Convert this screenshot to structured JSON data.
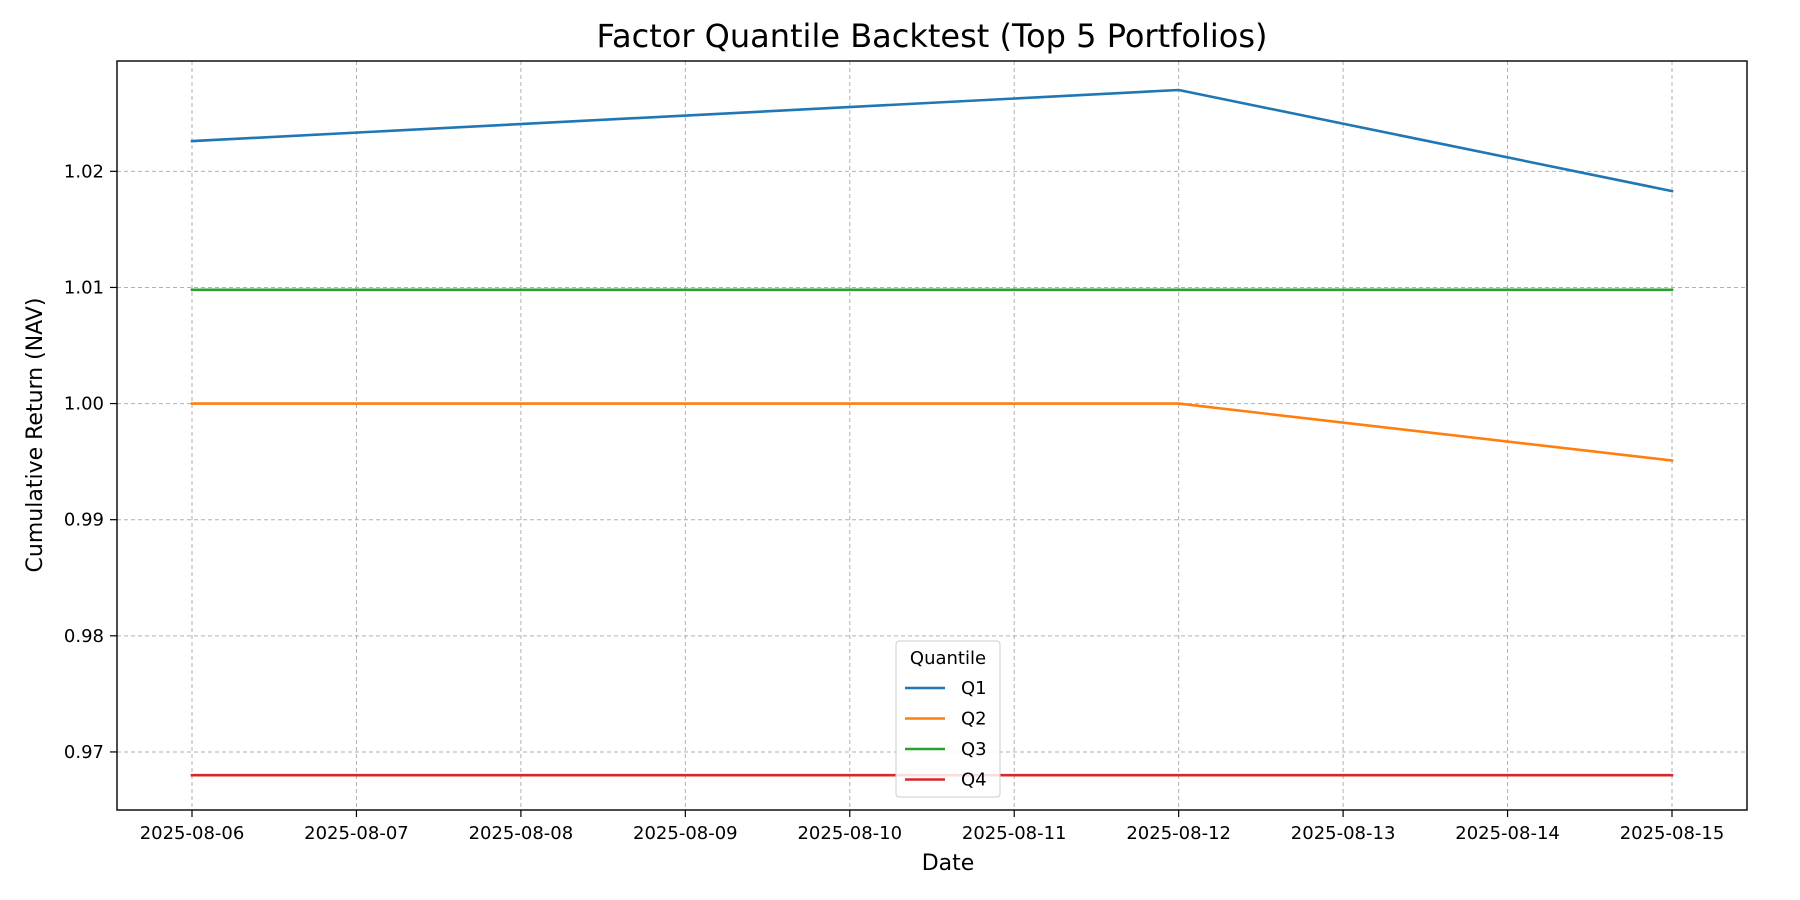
{
  "chart_data": {
    "type": "line",
    "title": "Factor Quantile Backtest (Top 5 Portfolios)",
    "xlabel": "Date",
    "ylabel": "Cumulative Return (NAV)",
    "x": [
      "2025-08-06",
      "2025-08-07",
      "2025-08-08",
      "2025-08-09",
      "2025-08-10",
      "2025-08-11",
      "2025-08-12",
      "2025-08-13",
      "2025-08-14",
      "2025-08-15"
    ],
    "ylim": [
      0.965,
      1.0295
    ],
    "yticks": [
      0.97,
      0.98,
      0.99,
      1.0,
      1.01,
      1.02
    ],
    "ytick_labels": [
      "0.97",
      "0.98",
      "0.99",
      "1.00",
      "1.01",
      "1.02"
    ],
    "grid": true,
    "legend_title": "Quantile",
    "legend_position": "bottom-center",
    "series": [
      {
        "name": "Q1",
        "color": "#1f77b4",
        "points": [
          [
            "2025-08-06",
            1.0226
          ],
          [
            "2025-08-12",
            1.027
          ],
          [
            "2025-08-15",
            1.0183
          ]
        ]
      },
      {
        "name": "Q2",
        "color": "#ff7f0e",
        "points": [
          [
            "2025-08-06",
            1.0
          ],
          [
            "2025-08-12",
            1.0
          ],
          [
            "2025-08-15",
            0.9951
          ]
        ]
      },
      {
        "name": "Q3",
        "color": "#2ca02c",
        "points": [
          [
            "2025-08-06",
            1.0098
          ],
          [
            "2025-08-15",
            1.0098
          ]
        ]
      },
      {
        "name": "Q4",
        "color": "#d62728",
        "points": [
          [
            "2025-08-06",
            0.968
          ],
          [
            "2025-08-15",
            0.968
          ]
        ]
      }
    ]
  }
}
